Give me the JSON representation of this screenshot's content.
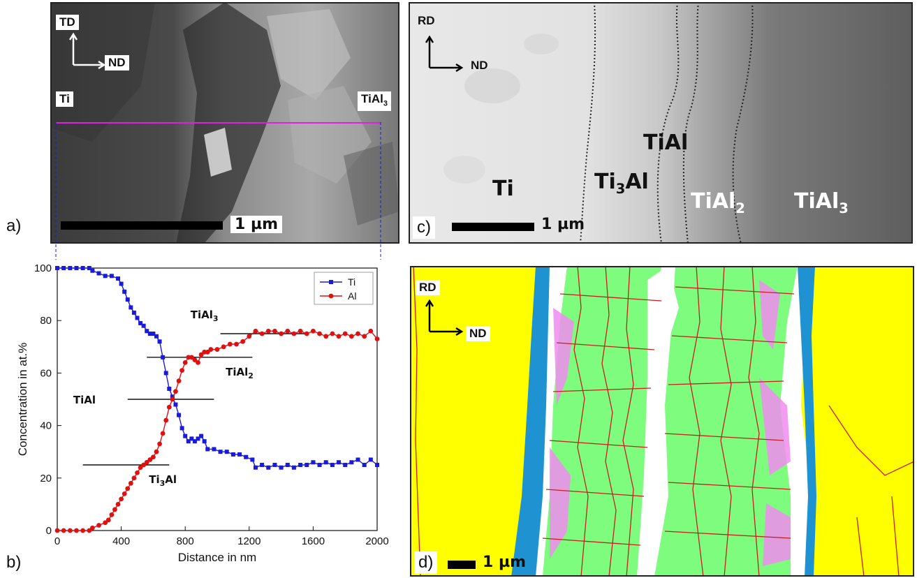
{
  "panels": {
    "a": {
      "letter": "a)",
      "axis_up": "TD",
      "axis_right": "ND",
      "left_phase": "Ti",
      "right_phase_base": "TiAl",
      "right_phase_sub": "3",
      "scale": "1 µm"
    },
    "b": {
      "letter": "b)"
    },
    "c": {
      "letter": "c)",
      "axis_up": "RD",
      "axis_right": "ND",
      "scale": "1 µm",
      "phases": [
        {
          "base": "Ti",
          "sub": ""
        },
        {
          "base": "Ti",
          "sub": "3",
          "tail": "Al"
        },
        {
          "base": "TiAl",
          "sub": ""
        },
        {
          "base": "TiAl",
          "sub": "2"
        },
        {
          "base": "TiAl",
          "sub": "3"
        }
      ]
    },
    "d": {
      "letter": "d)",
      "axis_up": "RD",
      "axis_right": "ND",
      "scale": "1 µm",
      "colors": {
        "yellow": "#ffff00",
        "green": "#7dfc7d",
        "blue": "#1f92d2",
        "pink": "#f08cf0",
        "boundary": "#c81e1e",
        "white": "#ffffff"
      }
    }
  },
  "chart_data": {
    "type": "line",
    "xlabel": "Distance in nm",
    "ylabel": "Concentration in at.%",
    "xlim": [
      0,
      2000
    ],
    "ylim": [
      0,
      100
    ],
    "xticks": [
      0,
      400,
      800,
      1200,
      1600,
      2000
    ],
    "yticks": [
      0,
      20,
      40,
      60,
      80,
      100
    ],
    "legend": "top-right",
    "series": [
      {
        "name": "Ti",
        "color": "#1a1adc",
        "marker": "square",
        "points": [
          [
            0,
            100
          ],
          [
            40,
            100
          ],
          [
            80,
            100
          ],
          [
            120,
            100
          ],
          [
            160,
            100
          ],
          [
            200,
            100
          ],
          [
            220,
            99
          ],
          [
            260,
            98
          ],
          [
            300,
            97
          ],
          [
            340,
            97
          ],
          [
            380,
            96
          ],
          [
            400,
            94
          ],
          [
            420,
            91
          ],
          [
            440,
            88
          ],
          [
            460,
            85
          ],
          [
            480,
            83
          ],
          [
            500,
            81
          ],
          [
            520,
            79
          ],
          [
            540,
            78
          ],
          [
            560,
            76
          ],
          [
            580,
            75
          ],
          [
            600,
            75
          ],
          [
            620,
            74
          ],
          [
            640,
            72
          ],
          [
            660,
            66
          ],
          [
            680,
            60
          ],
          [
            700,
            54
          ],
          [
            720,
            51
          ],
          [
            740,
            48
          ],
          [
            760,
            44
          ],
          [
            780,
            39
          ],
          [
            800,
            36
          ],
          [
            820,
            34
          ],
          [
            840,
            35
          ],
          [
            860,
            34
          ],
          [
            880,
            35
          ],
          [
            900,
            36
          ],
          [
            920,
            34
          ],
          [
            940,
            31
          ],
          [
            980,
            31
          ],
          [
            1020,
            30
          ],
          [
            1060,
            30
          ],
          [
            1100,
            29
          ],
          [
            1140,
            29
          ],
          [
            1180,
            28
          ],
          [
            1220,
            27
          ],
          [
            1240,
            24
          ],
          [
            1280,
            25
          ],
          [
            1320,
            24
          ],
          [
            1360,
            25
          ],
          [
            1400,
            24
          ],
          [
            1440,
            25
          ],
          [
            1480,
            24
          ],
          [
            1520,
            25
          ],
          [
            1560,
            25
          ],
          [
            1600,
            26
          ],
          [
            1640,
            25
          ],
          [
            1680,
            26
          ],
          [
            1720,
            25
          ],
          [
            1760,
            26
          ],
          [
            1800,
            25
          ],
          [
            1840,
            26
          ],
          [
            1880,
            27
          ],
          [
            1920,
            25
          ],
          [
            1960,
            27
          ],
          [
            2000,
            25
          ]
        ]
      },
      {
        "name": "Al",
        "color": "#e01010",
        "marker": "circle",
        "points": [
          [
            0,
            0
          ],
          [
            40,
            0
          ],
          [
            80,
            0
          ],
          [
            120,
            0
          ],
          [
            160,
            0
          ],
          [
            200,
            0
          ],
          [
            220,
            1
          ],
          [
            260,
            2
          ],
          [
            300,
            3
          ],
          [
            320,
            4
          ],
          [
            340,
            6
          ],
          [
            360,
            8
          ],
          [
            380,
            10
          ],
          [
            400,
            12
          ],
          [
            420,
            14
          ],
          [
            440,
            16
          ],
          [
            460,
            18
          ],
          [
            480,
            20
          ],
          [
            500,
            22
          ],
          [
            520,
            24
          ],
          [
            540,
            25
          ],
          [
            560,
            26
          ],
          [
            580,
            27
          ],
          [
            600,
            28
          ],
          [
            620,
            30
          ],
          [
            640,
            33
          ],
          [
            660,
            37
          ],
          [
            680,
            42
          ],
          [
            700,
            47
          ],
          [
            720,
            50
          ],
          [
            740,
            53
          ],
          [
            760,
            57
          ],
          [
            780,
            61
          ],
          [
            800,
            64
          ],
          [
            820,
            66
          ],
          [
            840,
            66
          ],
          [
            860,
            65
          ],
          [
            880,
            64
          ],
          [
            900,
            67
          ],
          [
            920,
            68
          ],
          [
            940,
            68
          ],
          [
            960,
            69
          ],
          [
            1000,
            69
          ],
          [
            1040,
            70
          ],
          [
            1080,
            71
          ],
          [
            1120,
            71
          ],
          [
            1160,
            72
          ],
          [
            1200,
            74
          ],
          [
            1240,
            76
          ],
          [
            1280,
            75
          ],
          [
            1320,
            76
          ],
          [
            1360,
            76
          ],
          [
            1400,
            75
          ],
          [
            1440,
            76
          ],
          [
            1480,
            75
          ],
          [
            1520,
            76
          ],
          [
            1560,
            75
          ],
          [
            1600,
            76
          ],
          [
            1640,
            75
          ],
          [
            1680,
            74
          ],
          [
            1720,
            75
          ],
          [
            1760,
            74
          ],
          [
            1800,
            75
          ],
          [
            1840,
            74
          ],
          [
            1880,
            75
          ],
          [
            1920,
            74
          ],
          [
            1960,
            76
          ],
          [
            2000,
            73
          ]
        ]
      }
    ],
    "annotations": [
      {
        "base": "TiAl",
        "sub": "3",
        "level": 75,
        "x_from": 1020,
        "x_to": 1560
      },
      {
        "base": "TiAl",
        "sub": "2",
        "level": 66,
        "x_from": 560,
        "x_to": 1220
      },
      {
        "base": "TiAl",
        "sub": "",
        "level": 50,
        "x_from": 440,
        "x_to": 980
      },
      {
        "base": "Ti",
        "sub": "3",
        "tail": "Al",
        "level": 25,
        "x_from": 160,
        "x_to": 700
      }
    ]
  }
}
